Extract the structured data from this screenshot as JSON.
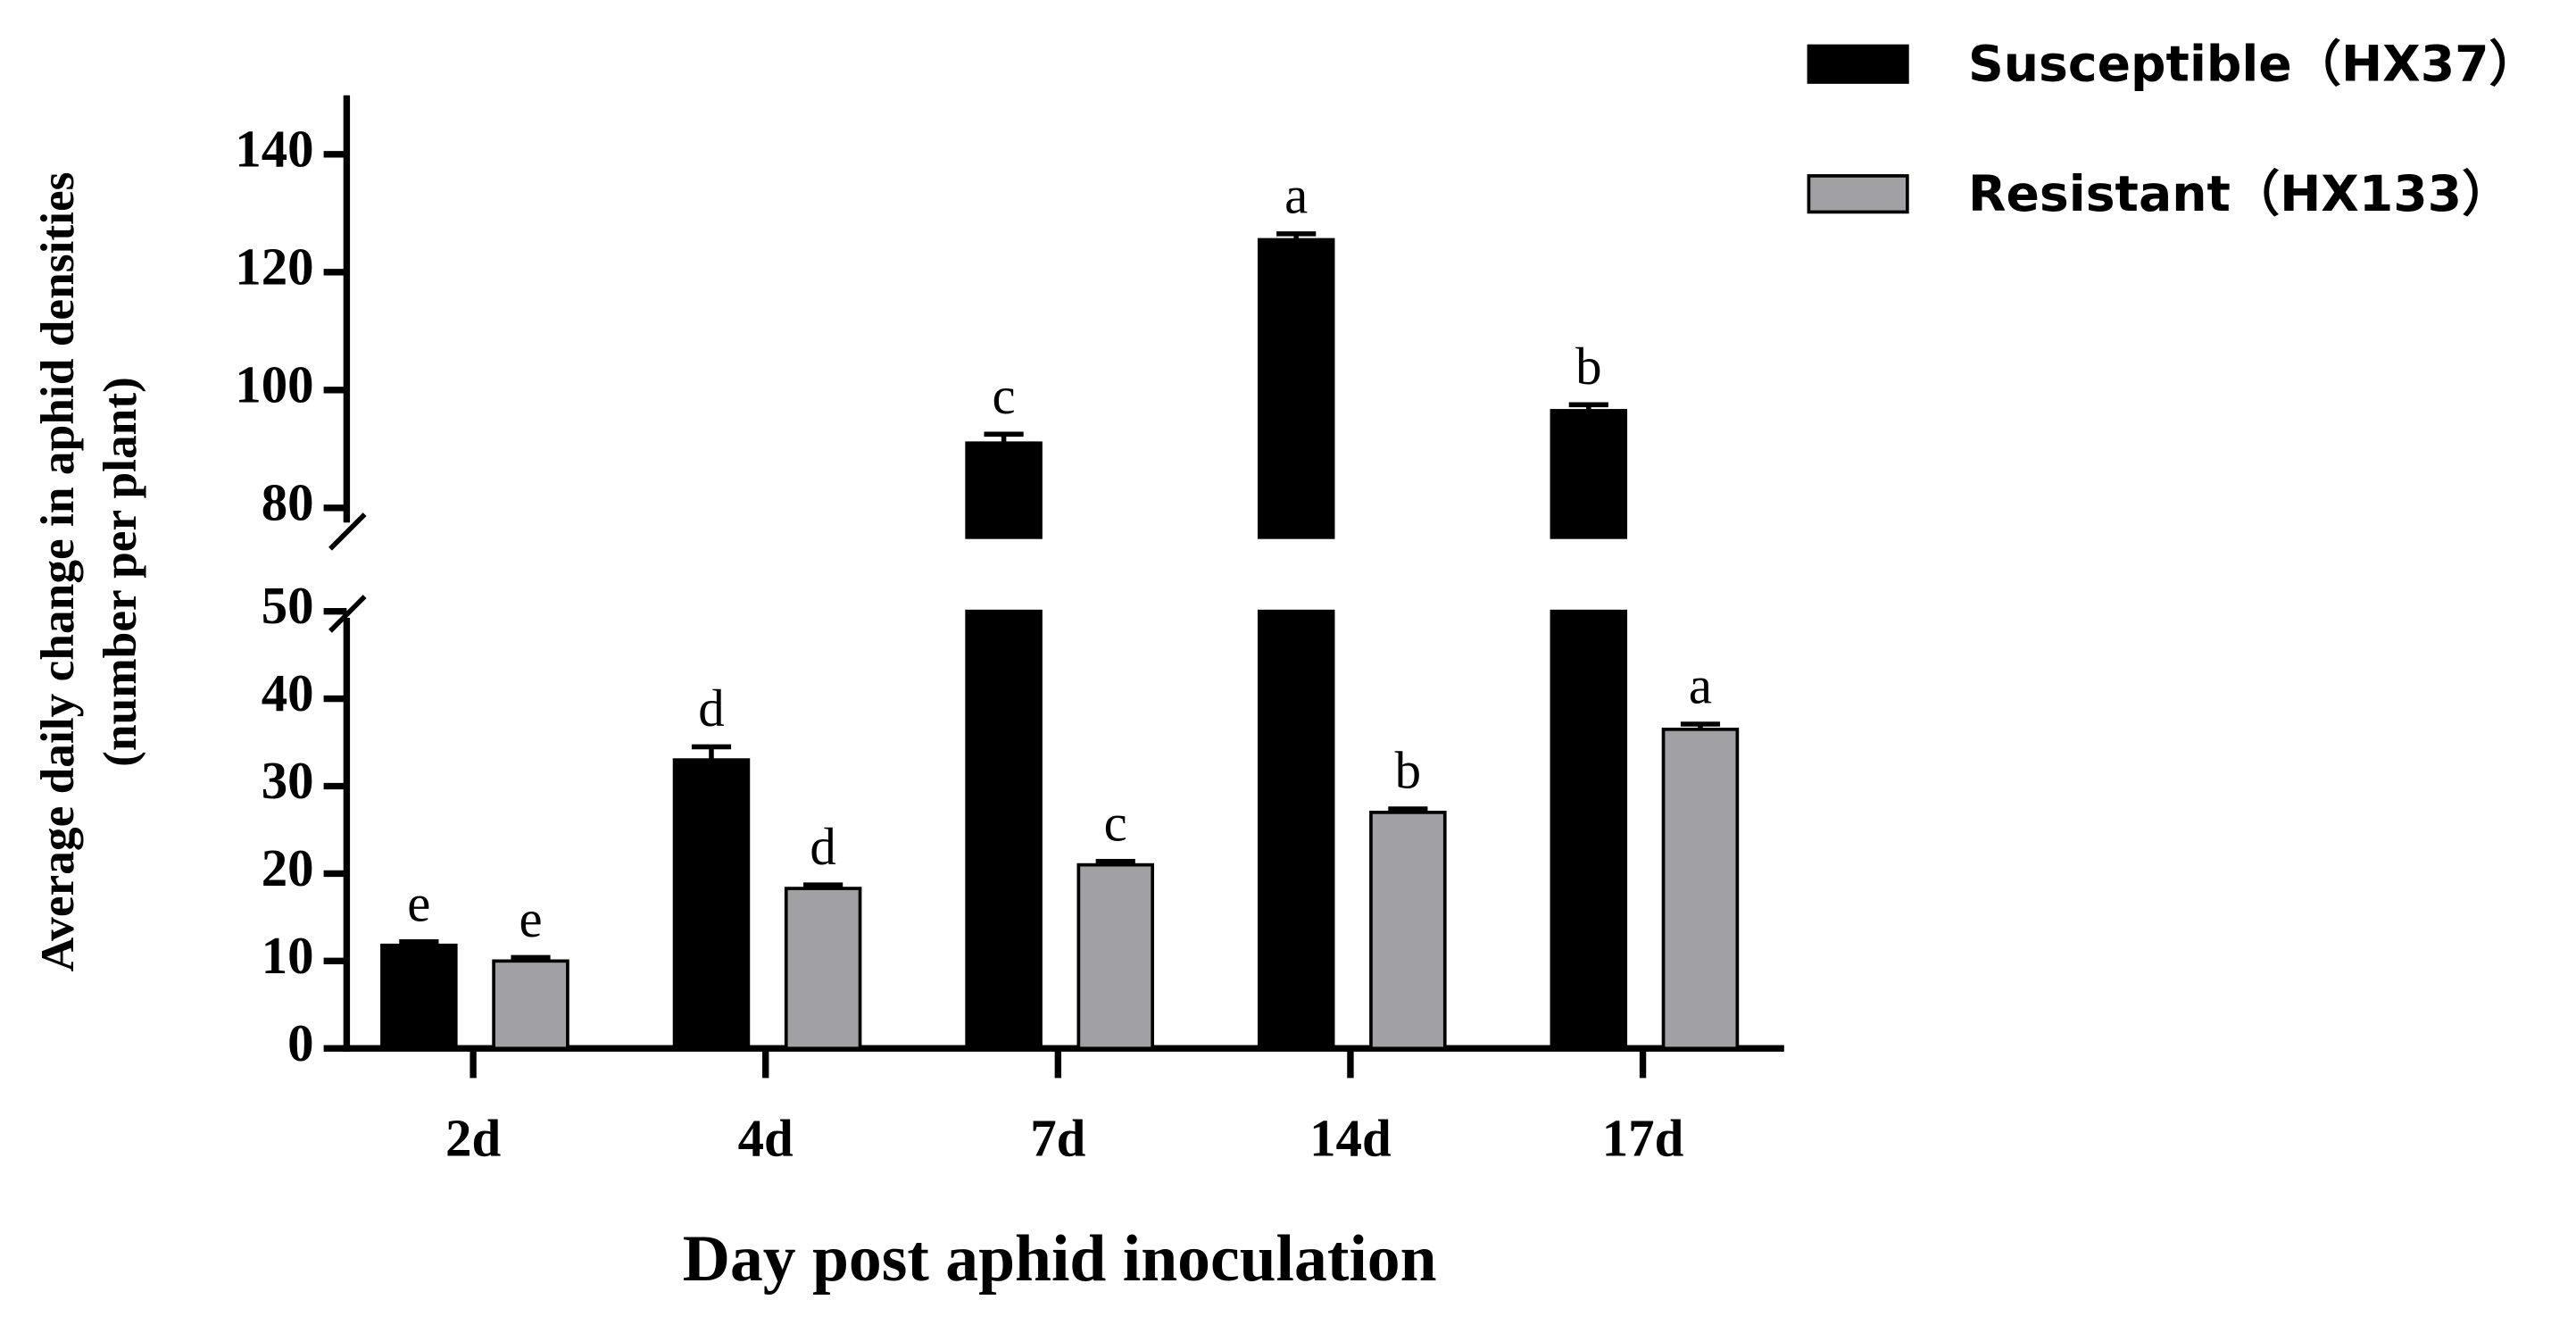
{
  "chart_data": {
    "type": "bar",
    "x_label": "Day post aphid inoculation",
    "y_label": [
      "Average daily change in aphid densities",
      "(number per plant)"
    ],
    "categories": [
      "2d",
      "4d",
      "7d",
      "14d",
      "17d"
    ],
    "y_segments": [
      {
        "ylim": [
          0,
          50
        ],
        "yticks": [
          0,
          10,
          20,
          30,
          40,
          50
        ]
      },
      {
        "ylim": [
          75,
          150
        ],
        "yticks": [
          80,
          100,
          120,
          140
        ]
      }
    ],
    "legend": "top-right",
    "series": [
      {
        "name": "Susceptible（HX37）",
        "color": "#000000",
        "values": [
          11.8,
          33,
          91,
          125.5,
          96.5
        ],
        "errors": [
          0.4,
          1.5,
          1.5,
          1,
          1
        ],
        "letters": [
          "e",
          "d",
          "c",
          "a",
          "b"
        ]
      },
      {
        "name": "Resistant（HX133）",
        "color": "#a1a1a5",
        "values": [
          10,
          18.3,
          21,
          27,
          36.5
        ],
        "errors": [
          0.4,
          0.4,
          0.4,
          0.4,
          0.6
        ],
        "letters": [
          "e",
          "d",
          "c",
          "b",
          "a"
        ]
      }
    ]
  }
}
